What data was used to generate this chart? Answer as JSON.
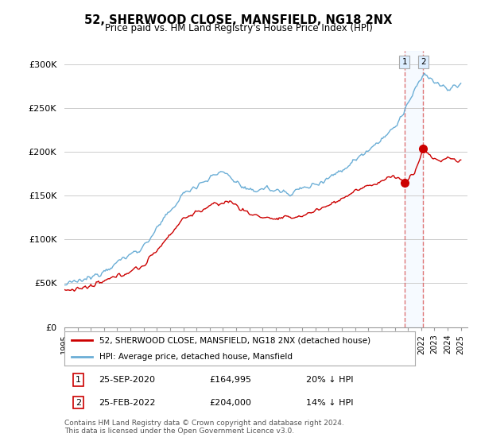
{
  "title": "52, SHERWOOD CLOSE, MANSFIELD, NG18 2NX",
  "subtitle": "Price paid vs. HM Land Registry's House Price Index (HPI)",
  "ylabel_ticks": [
    "£0",
    "£50K",
    "£100K",
    "£150K",
    "£200K",
    "£250K",
    "£300K"
  ],
  "ytick_values": [
    0,
    50000,
    100000,
    150000,
    200000,
    250000,
    300000
  ],
  "ylim": [
    0,
    315000
  ],
  "xlim_start": 1995.0,
  "xlim_end": 2025.5,
  "hpi_color": "#6baed6",
  "price_color": "#cc0000",
  "vline_color": "#dd6666",
  "shade_color": "#ddeeff",
  "box_color": "#ddeeff",
  "transaction1_date": "25-SEP-2020",
  "transaction1_price": "£164,995",
  "transaction1_hpi": "20% ↓ HPI",
  "transaction1_x": 2020.73,
  "transaction1_y": 164995,
  "transaction2_date": "25-FEB-2022",
  "transaction2_price": "£204,000",
  "transaction2_hpi": "14% ↓ HPI",
  "transaction2_x": 2022.15,
  "transaction2_y": 204000,
  "legend_label1": "52, SHERWOOD CLOSE, MANSFIELD, NG18 2NX (detached house)",
  "legend_label2": "HPI: Average price, detached house, Mansfield",
  "footer": "Contains HM Land Registry data © Crown copyright and database right 2024.\nThis data is licensed under the Open Government Licence v3.0.",
  "background_color": "#ffffff",
  "grid_color": "#cccccc"
}
